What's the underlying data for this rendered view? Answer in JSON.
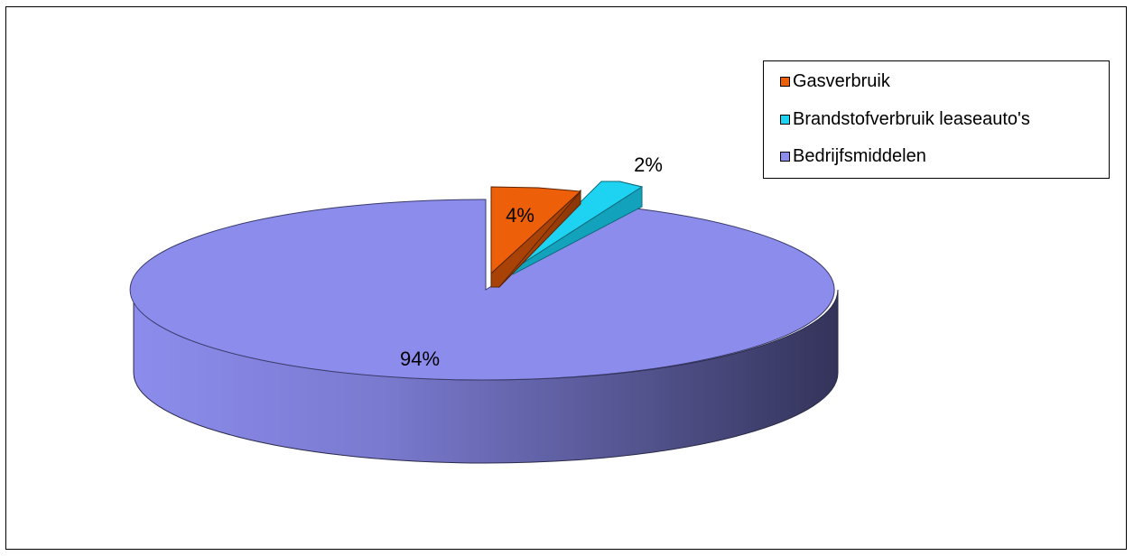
{
  "chart_data": {
    "type": "pie",
    "title": "",
    "legend_position": "top-right",
    "slices": [
      {
        "name": "Gasverbruik",
        "value": 4,
        "label": "4%",
        "color": "#ee5f0a",
        "exploded": true
      },
      {
        "name": "Brandstofverbruik leaseauto's",
        "value": 2,
        "label": "2%",
        "color": "#1ed3f2",
        "exploded": true
      },
      {
        "name": "Bedrijfsmiddelen",
        "value": 94,
        "label": "94%",
        "color": "#8c8ced",
        "exploded": false
      }
    ]
  }
}
